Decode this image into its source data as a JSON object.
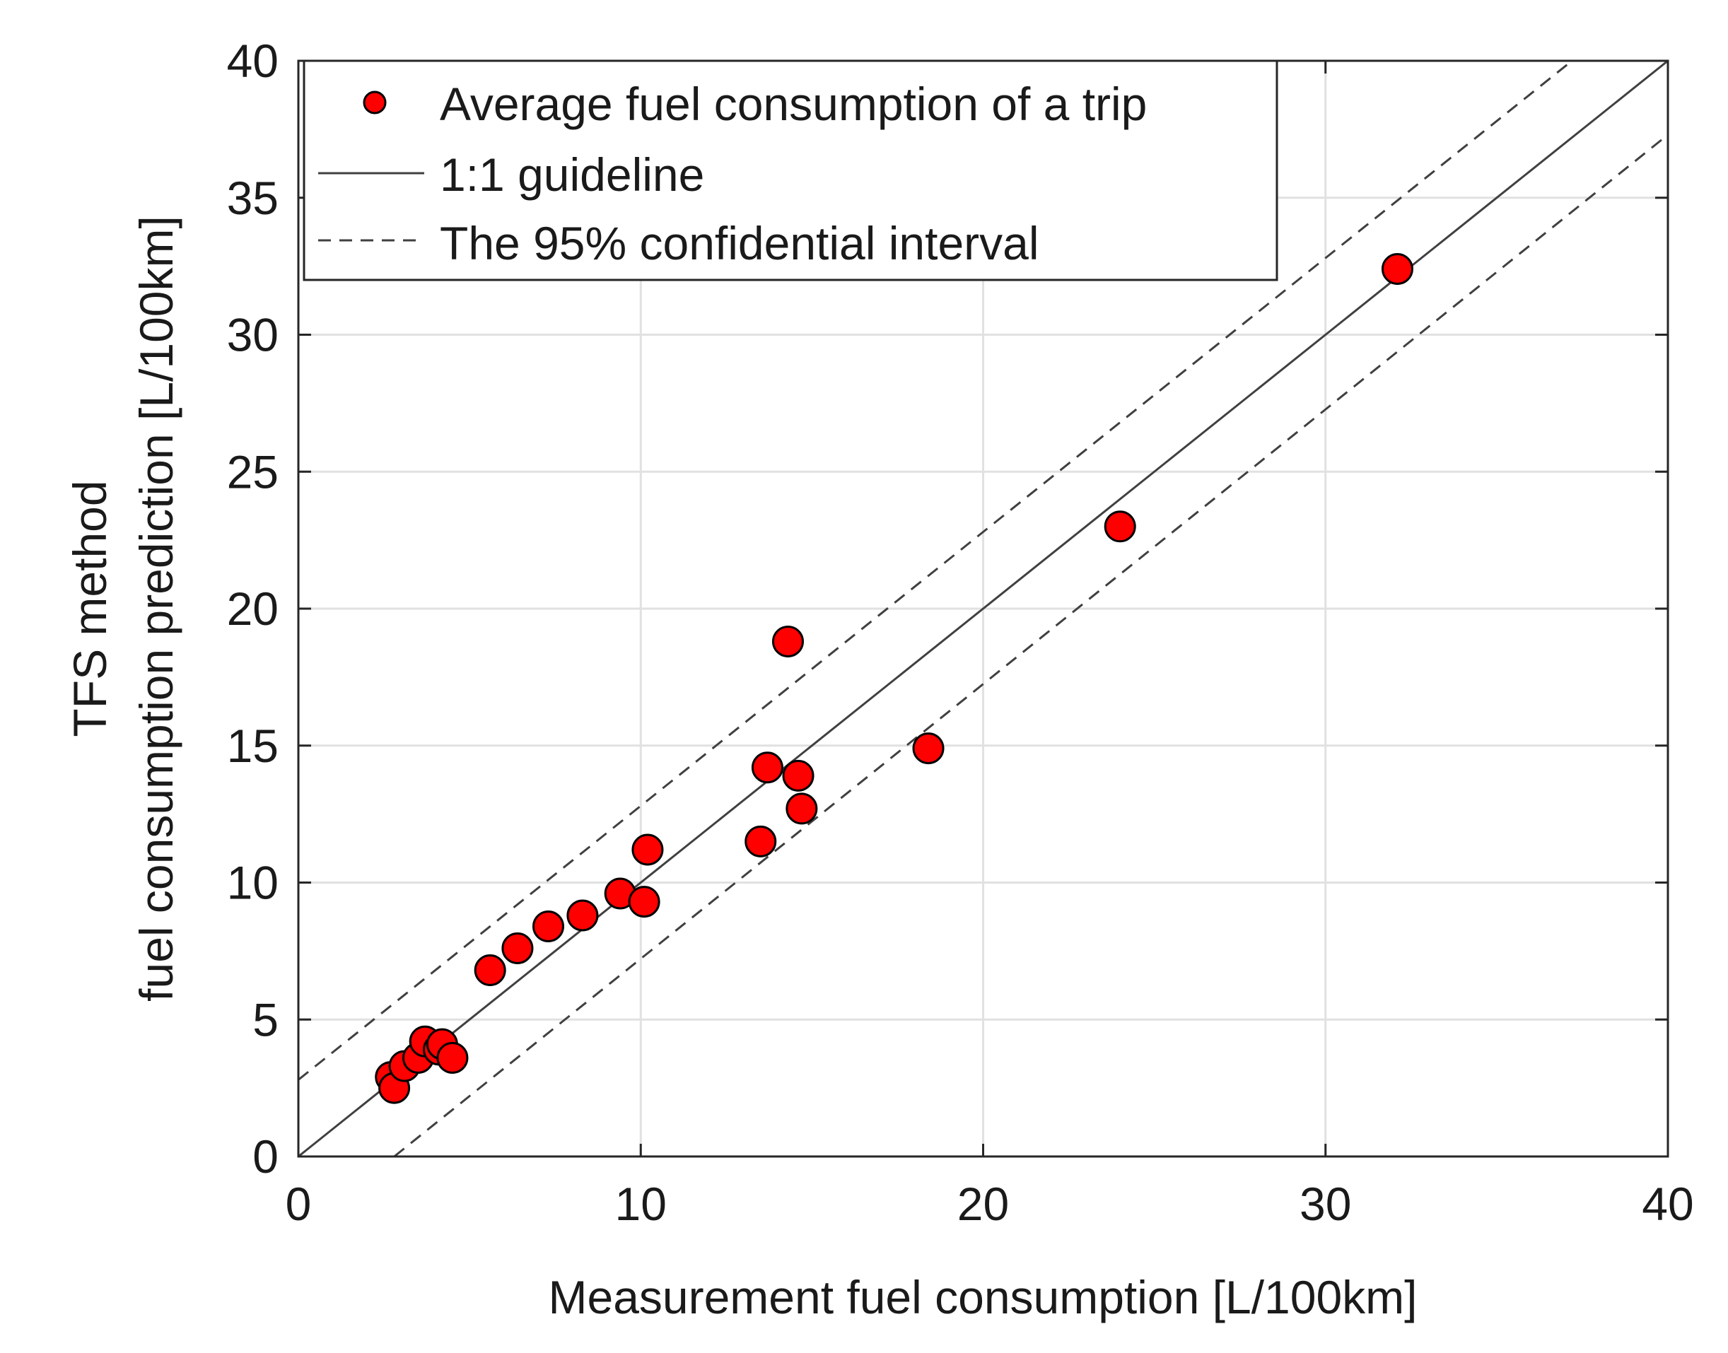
{
  "chart_data": {
    "type": "scatter",
    "xlabel": "Measurement fuel consumption [L/100km]",
    "ylabel_line1": "TFS method",
    "ylabel_line2": "fuel consumption prediction [L/100km]",
    "xlim": [
      0,
      40
    ],
    "ylim": [
      0,
      40
    ],
    "xticks": [
      0,
      10,
      20,
      30,
      40
    ],
    "yticks": [
      0,
      5,
      10,
      15,
      20,
      25,
      30,
      35,
      40
    ],
    "xtick_labels": [
      "0",
      "10",
      "20",
      "30",
      "40"
    ],
    "ytick_labels": [
      "0",
      "5",
      "10",
      "15",
      "20",
      "25",
      "30",
      "35",
      "40"
    ],
    "grid": true,
    "legend_position": "top-left",
    "marker_color": "#ff0000",
    "line_color": "#404040",
    "series": [
      {
        "name": "Average fuel consumption of a trip",
        "kind": "scatter",
        "points": [
          {
            "x": 2.7,
            "y": 2.9
          },
          {
            "x": 2.8,
            "y": 2.5
          },
          {
            "x": 3.1,
            "y": 3.3
          },
          {
            "x": 3.5,
            "y": 3.6
          },
          {
            "x": 3.7,
            "y": 4.2
          },
          {
            "x": 4.1,
            "y": 3.9
          },
          {
            "x": 4.2,
            "y": 4.1
          },
          {
            "x": 4.5,
            "y": 3.6
          },
          {
            "x": 5.6,
            "y": 6.8
          },
          {
            "x": 6.4,
            "y": 7.6
          },
          {
            "x": 7.3,
            "y": 8.4
          },
          {
            "x": 8.3,
            "y": 8.8
          },
          {
            "x": 9.4,
            "y": 9.6
          },
          {
            "x": 10.1,
            "y": 9.3
          },
          {
            "x": 10.2,
            "y": 11.2
          },
          {
            "x": 13.5,
            "y": 11.5
          },
          {
            "x": 13.7,
            "y": 14.2
          },
          {
            "x": 14.3,
            "y": 18.8
          },
          {
            "x": 14.6,
            "y": 13.9
          },
          {
            "x": 14.7,
            "y": 12.7
          },
          {
            "x": 18.4,
            "y": 14.9
          },
          {
            "x": 24.0,
            "y": 23.0
          },
          {
            "x": 32.1,
            "y": 32.4
          }
        ]
      },
      {
        "name": "1:1 guideline",
        "kind": "line",
        "style": "solid",
        "points": [
          {
            "x": 0,
            "y": 0
          },
          {
            "x": 40,
            "y": 40
          }
        ]
      },
      {
        "name": "The 95% confidential interval",
        "kind": "line",
        "style": "dashed",
        "points": [
          {
            "x": 0,
            "y": 2.8
          },
          {
            "x": 37.2,
            "y": 40
          }
        ]
      },
      {
        "name": "The 95% confidential interval",
        "kind": "line",
        "style": "dashed",
        "show_in_legend": false,
        "points": [
          {
            "x": 2.8,
            "y": 0
          },
          {
            "x": 40,
            "y": 37.3
          }
        ]
      }
    ]
  }
}
